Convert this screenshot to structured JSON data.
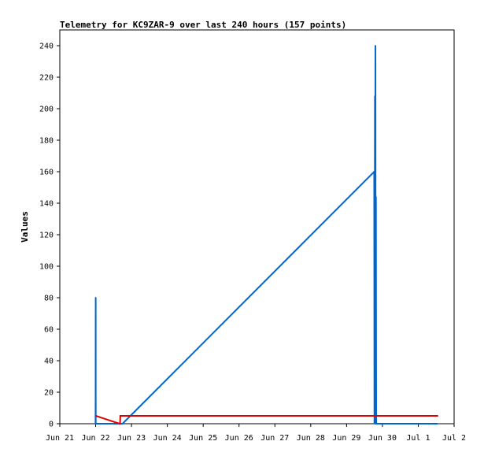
{
  "chart_data": {
    "type": "line",
    "title": "Telemetry for KC9ZAR-9 over last 240 hours (157 points)",
    "xlabel": "",
    "ylabel": "Values",
    "x_tick_labels": [
      "Jun 21",
      "Jun 22",
      "Jun 23",
      "Jun 24",
      "Jun 25",
      "Jun 26",
      "Jun 27",
      "Jun 28",
      "Jun 29",
      "Jun 30",
      "Jul 1",
      "Jul 2"
    ],
    "xlim": [
      "2024-06-21 00:00",
      "2024-07-02 00:00"
    ],
    "ylim": [
      0,
      250
    ],
    "y_ticks": [
      0,
      20,
      40,
      60,
      80,
      100,
      120,
      140,
      160,
      180,
      200,
      220,
      240
    ],
    "grid": false,
    "legend": "none",
    "series": [
      {
        "color": "#0066cc",
        "points": [
          [
            "2024-06-21 23:55",
            0
          ],
          [
            "2024-06-21 23:58",
            16
          ],
          [
            "2024-06-22 00:00",
            64
          ],
          [
            "2024-06-22 00:02",
            80
          ],
          [
            "2024-06-22 00:04",
            0
          ],
          [
            "2024-06-22 18:00",
            0
          ],
          [
            "2024-06-29 18:30",
            160
          ],
          [
            "2024-06-29 18:40",
            0
          ],
          [
            "2024-06-29 18:50",
            80
          ],
          [
            "2024-06-29 19:00",
            208
          ],
          [
            "2024-06-29 19:10",
            0
          ],
          [
            "2024-06-29 19:20",
            240
          ],
          [
            "2024-06-29 19:30",
            0
          ],
          [
            "2024-06-29 19:40",
            144
          ],
          [
            "2024-06-29 19:50",
            0
          ],
          [
            "2024-07-01 13:00",
            0
          ]
        ]
      },
      {
        "color": "#dd0000",
        "points": [
          [
            "2024-06-22 00:05",
            5
          ],
          [
            "2024-06-22 16:00",
            0
          ],
          [
            "2024-06-22 16:20",
            0
          ],
          [
            "2024-06-22 16:30",
            5
          ],
          [
            "2024-07-01 13:00",
            5
          ]
        ]
      }
    ]
  }
}
